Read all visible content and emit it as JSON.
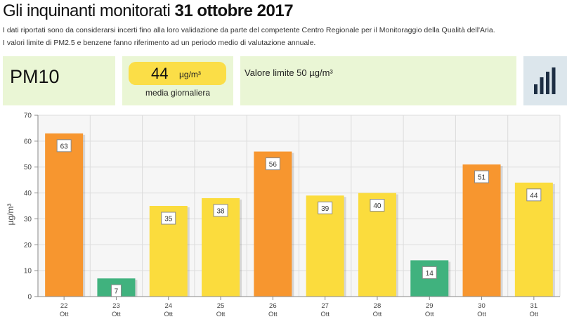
{
  "header": {
    "title_prefix": "Gli inquinanti monitorati",
    "title_date": "31 ottobre 2017",
    "note_1": "I dati riportati sono da considerarsi incerti fino alla loro validazione da parte del competente Centro Regionale per il Monitoraggio della Qualità dell'Aria.",
    "note_2": "I valori limite di PM2.5 e benzene fanno riferimento ad un periodo medio di valutazione annuale."
  },
  "summary": {
    "pollutant": "PM10",
    "average_value": "44",
    "average_unit": "µg/m³",
    "average_label": "media giornaliera",
    "limit_text": "Valore limite 50 µg/m³",
    "chart_button_icon": "bar-chart-icon"
  },
  "colors": {
    "panel_bg": "#eaf6d5",
    "pill_bg": "#fbde47",
    "bar_over_limit": "#f7962f",
    "bar_moderate": "#fbdc3d",
    "bar_good": "#40b27e",
    "plot_bg": "#f6f6f6"
  },
  "chart_data": {
    "type": "bar",
    "categories": [
      "22 Ott",
      "23 Ott",
      "24 Ott",
      "25 Ott",
      "26 Ott",
      "27 Ott",
      "28 Ott",
      "29 Ott",
      "30 Ott",
      "31 Ott"
    ],
    "x_ticks": [
      {
        "day": "22",
        "month": "Ott"
      },
      {
        "day": "23",
        "month": "Ott"
      },
      {
        "day": "24",
        "month": "Ott"
      },
      {
        "day": "25",
        "month": "Ott"
      },
      {
        "day": "26",
        "month": "Ott"
      },
      {
        "day": "27",
        "month": "Ott"
      },
      {
        "day": "28",
        "month": "Ott"
      },
      {
        "day": "29",
        "month": "Ott"
      },
      {
        "day": "30",
        "month": "Ott"
      },
      {
        "day": "31",
        "month": "Ott"
      }
    ],
    "values": [
      63,
      7,
      35,
      38,
      56,
      39,
      40,
      14,
      51,
      44
    ],
    "bar_colors": [
      "#f7962f",
      "#40b27e",
      "#fbdc3d",
      "#fbdc3d",
      "#f7962f",
      "#fbdc3d",
      "#fbdc3d",
      "#40b27e",
      "#f7962f",
      "#fbdc3d"
    ],
    "ylabel": "µg/m³",
    "ylim": [
      0,
      70
    ],
    "yticks": [
      0,
      10,
      20,
      30,
      40,
      50,
      60,
      70
    ],
    "grid": true,
    "data_labels": true
  }
}
